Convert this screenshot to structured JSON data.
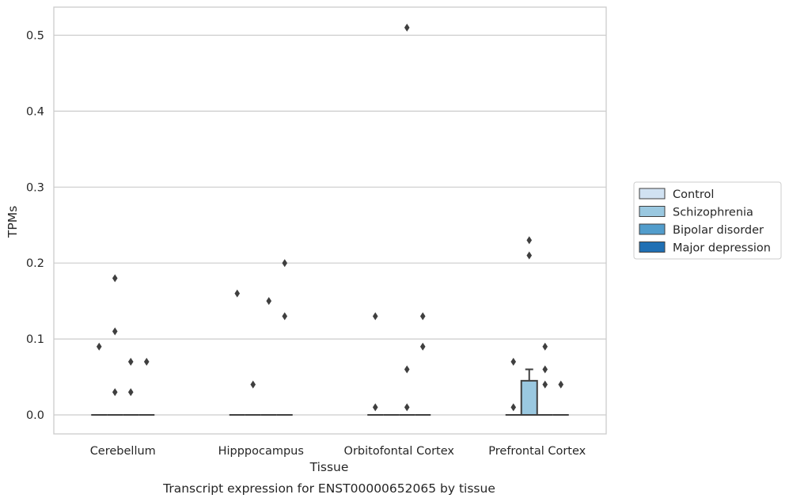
{
  "chart_data": {
    "type": "box",
    "title": "Transcript expression for ENST00000652065 by tissue",
    "xlabel": "Tissue",
    "ylabel": "TPMs",
    "ylim": [
      -0.025,
      0.537
    ],
    "yticks": [
      "0.0",
      "0.1",
      "0.2",
      "0.3",
      "0.4",
      "0.5"
    ],
    "grid": true,
    "legend_position": "right",
    "categories": [
      "Cerebellum",
      "Hipppocampus",
      "Orbitofontal Cortex",
      "Prefrontal Cortex"
    ],
    "series": [
      {
        "name": "Control",
        "color": "#d1e2f2"
      },
      {
        "name": "Schizophrenia",
        "color": "#9ac8e0"
      },
      {
        "name": "Bipolar disorder",
        "color": "#529dcc"
      },
      {
        "name": "Major depression",
        "color": "#2070b4"
      }
    ],
    "boxes": [
      {
        "category": 0,
        "series": 0,
        "q1": 0,
        "median": 0,
        "q3": 0,
        "whisker_low": 0,
        "whisker_high": 0
      },
      {
        "category": 0,
        "series": 1,
        "q1": 0,
        "median": 0,
        "q3": 0,
        "whisker_low": 0,
        "whisker_high": 0
      },
      {
        "category": 0,
        "series": 2,
        "q1": 0,
        "median": 0,
        "q3": 0,
        "whisker_low": 0,
        "whisker_high": 0
      },
      {
        "category": 0,
        "series": 3,
        "q1": 0,
        "median": 0,
        "q3": 0,
        "whisker_low": 0,
        "whisker_high": 0
      },
      {
        "category": 1,
        "series": 0,
        "q1": 0,
        "median": 0,
        "q3": 0,
        "whisker_low": 0,
        "whisker_high": 0
      },
      {
        "category": 1,
        "series": 1,
        "q1": 0,
        "median": 0,
        "q3": 0,
        "whisker_low": 0,
        "whisker_high": 0
      },
      {
        "category": 1,
        "series": 2,
        "q1": 0,
        "median": 0,
        "q3": 0,
        "whisker_low": 0,
        "whisker_high": 0
      },
      {
        "category": 1,
        "series": 3,
        "q1": 0,
        "median": 0,
        "q3": 0,
        "whisker_low": 0,
        "whisker_high": 0
      },
      {
        "category": 2,
        "series": 0,
        "q1": 0,
        "median": 0,
        "q3": 0,
        "whisker_low": 0,
        "whisker_high": 0
      },
      {
        "category": 2,
        "series": 1,
        "q1": 0,
        "median": 0,
        "q3": 0,
        "whisker_low": 0,
        "whisker_high": 0
      },
      {
        "category": 2,
        "series": 2,
        "q1": 0,
        "median": 0,
        "q3": 0,
        "whisker_low": 0,
        "whisker_high": 0
      },
      {
        "category": 2,
        "series": 3,
        "q1": 0,
        "median": 0,
        "q3": 0,
        "whisker_low": 0,
        "whisker_high": 0
      },
      {
        "category": 3,
        "series": 0,
        "q1": 0,
        "median": 0,
        "q3": 0,
        "whisker_low": 0,
        "whisker_high": 0
      },
      {
        "category": 3,
        "series": 1,
        "q1": 0,
        "median": 0,
        "q3": 0.045,
        "whisker_low": 0,
        "whisker_high": 0.06
      },
      {
        "category": 3,
        "series": 2,
        "q1": 0,
        "median": 0,
        "q3": 0,
        "whisker_low": 0,
        "whisker_high": 0
      },
      {
        "category": 3,
        "series": 3,
        "q1": 0,
        "median": 0,
        "q3": 0,
        "whisker_low": 0,
        "whisker_high": 0
      }
    ],
    "outliers": [
      {
        "category": 0,
        "series": 0,
        "values": [
          0.09
        ]
      },
      {
        "category": 0,
        "series": 1,
        "values": [
          0.18,
          0.11,
          0.03
        ]
      },
      {
        "category": 0,
        "series": 2,
        "values": [
          0.07,
          0.03
        ]
      },
      {
        "category": 0,
        "series": 3,
        "values": [
          0.07
        ]
      },
      {
        "category": 1,
        "series": 0,
        "values": [
          0.16
        ]
      },
      {
        "category": 1,
        "series": 1,
        "values": [
          0.04
        ]
      },
      {
        "category": 1,
        "series": 2,
        "values": [
          0.15
        ]
      },
      {
        "category": 1,
        "series": 3,
        "values": [
          0.2,
          0.13
        ]
      },
      {
        "category": 2,
        "series": 0,
        "values": [
          0.13,
          0.01
        ]
      },
      {
        "category": 2,
        "series": 2,
        "values": [
          0.51,
          0.06,
          0.01
        ]
      },
      {
        "category": 2,
        "series": 3,
        "values": [
          0.13,
          0.09
        ]
      },
      {
        "category": 3,
        "series": 0,
        "values": [
          0.07,
          0.01
        ]
      },
      {
        "category": 3,
        "series": 1,
        "values": [
          0.23,
          0.21
        ]
      },
      {
        "category": 3,
        "series": 2,
        "values": [
          0.09,
          0.06,
          0.04
        ]
      },
      {
        "category": 3,
        "series": 3,
        "values": [
          0.04
        ]
      }
    ]
  }
}
